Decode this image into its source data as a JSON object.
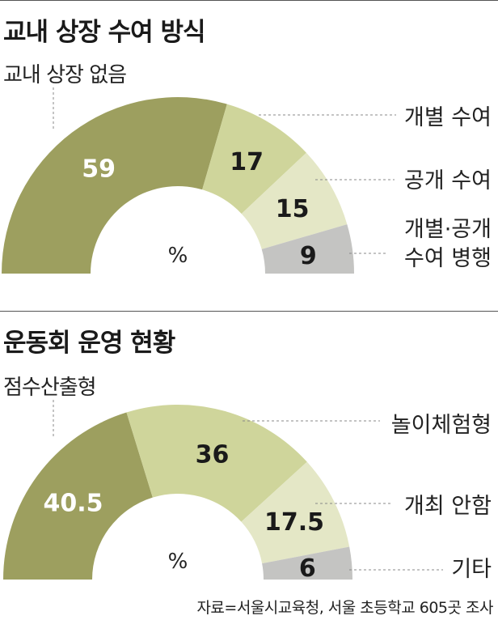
{
  "colors": {
    "seg1": "#9d9f5f",
    "seg2": "#cfd59b",
    "seg3": "#e4e7c6",
    "seg4": "#c4c4c2",
    "leader": "#888888",
    "value_light": "#ffffff",
    "value_dark": "#1a1a1a"
  },
  "chart_data": [
    {
      "type": "pie",
      "variant": "semi-donut",
      "title": "교내 상장 수여 방식",
      "unit": "%",
      "segments": [
        {
          "label": "교내 상장 없음",
          "value": 59
        },
        {
          "label": "개별 수여",
          "value": 17
        },
        {
          "label": "공개 수여",
          "value": 15
        },
        {
          "label": "개별·공개 수여 병행",
          "value": 9
        }
      ]
    },
    {
      "type": "pie",
      "variant": "semi-donut",
      "title": "운동회 운영 현황",
      "unit": "%",
      "segments": [
        {
          "label": "점수산출형",
          "value": 40.5
        },
        {
          "label": "놀이체험형",
          "value": 36
        },
        {
          "label": "개최 안함",
          "value": 17.5
        },
        {
          "label": "기타",
          "value": 6
        }
      ]
    }
  ],
  "display": {
    "c1_values": [
      "59",
      "17",
      "15",
      "9"
    ],
    "c1_label1_lines": [
      "개별 수여"
    ],
    "c1_label2_lines": [
      "공개 수여"
    ],
    "c1_label3_lines": [
      "개별·공개",
      "수여 병행"
    ],
    "c2_values": [
      "40.5",
      "36",
      "17.5",
      "6"
    ],
    "c2_label1_lines": [
      "놀이체험형"
    ],
    "c2_label2_lines": [
      "개최 안함"
    ],
    "c2_label3_lines": [
      "기타"
    ]
  },
  "caption": "자료=서울시교육청, 서울 초등학교 605곳 조사"
}
